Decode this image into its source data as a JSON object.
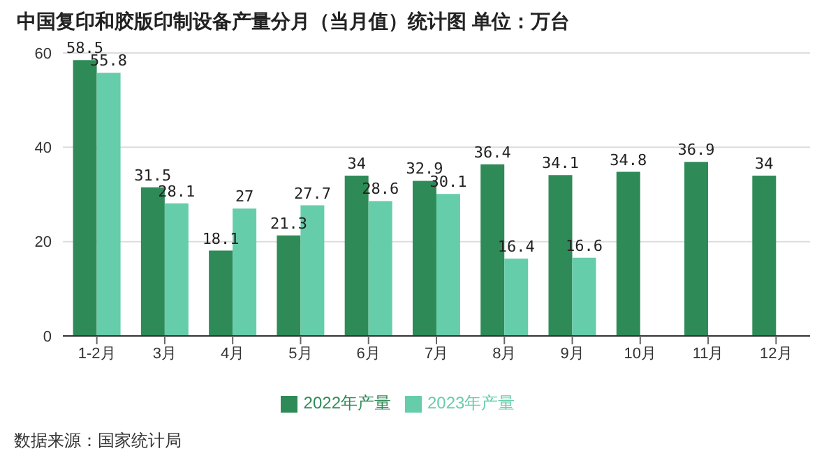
{
  "chart_data": {
    "type": "bar",
    "title": "中国复印和胶版印制设备产量分月（当月值）统计图 单位：万台",
    "categories": [
      "1-2月",
      "3月",
      "4月",
      "5月",
      "6月",
      "7月",
      "8月",
      "9月",
      "10月",
      "11月",
      "12月"
    ],
    "series": [
      {
        "name": "2022年产量",
        "color": "#2e8b57",
        "values": [
          58.5,
          31.5,
          18.1,
          21.3,
          34,
          32.9,
          36.4,
          34.1,
          34.8,
          36.9,
          34
        ]
      },
      {
        "name": "2023年产量",
        "color": "#66cdaa",
        "values": [
          55.8,
          28.1,
          27,
          27.7,
          28.6,
          30.1,
          16.4,
          16.6,
          null,
          null,
          null
        ]
      }
    ],
    "ylim": [
      0,
      60
    ],
    "yticks": [
      0,
      20,
      40,
      60
    ],
    "grid": "y",
    "legend": "bottom",
    "data_labels": true,
    "annotations": [
      "数据来源：国家统计局"
    ]
  }
}
